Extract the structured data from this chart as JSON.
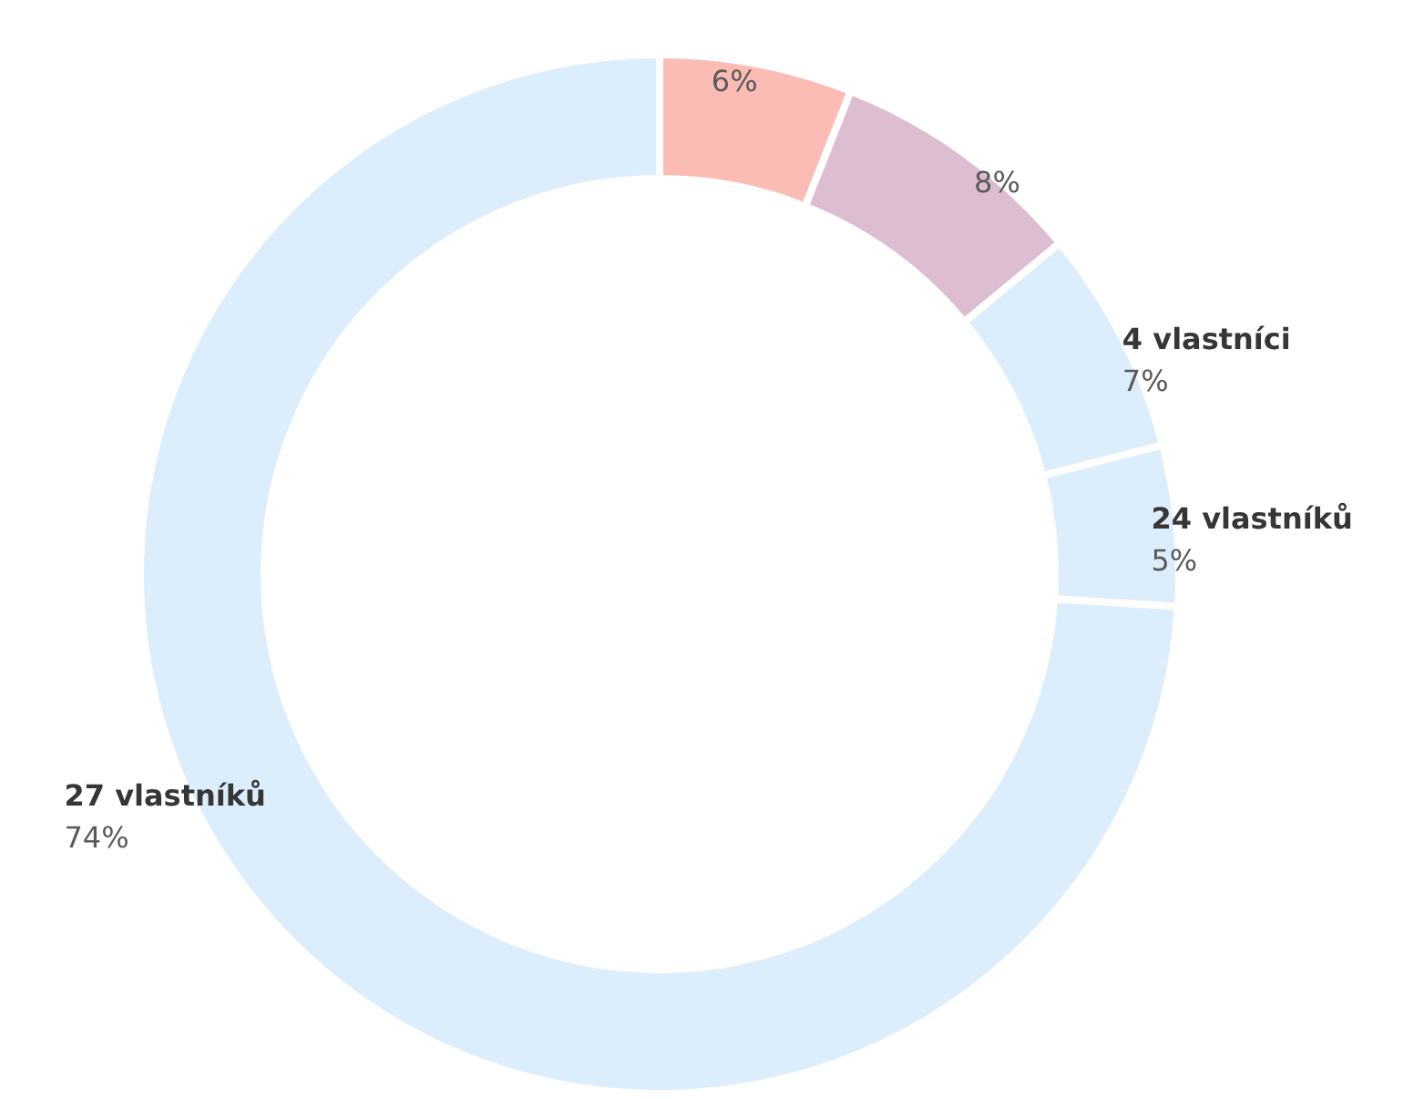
{
  "chart_data": {
    "type": "donut",
    "categories": [
      null,
      null,
      "4 vlastníci",
      "24 vlastníků",
      "27 vlastníků"
    ],
    "values": [
      6,
      8,
      7,
      5,
      74
    ],
    "colors": [
      "#fbbcb5",
      "#dcbdd2",
      "#dcedfb",
      "#dcedfb",
      "#dcedfb"
    ],
    "value_labels": [
      "6%",
      "8%",
      "7%",
      "5%",
      "74%"
    ]
  }
}
